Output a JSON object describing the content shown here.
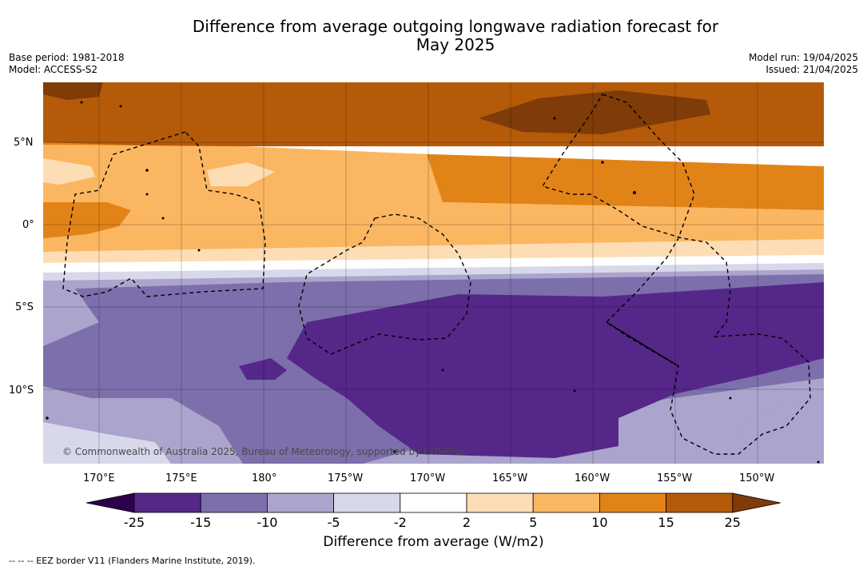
{
  "header": {
    "title_line1": "Difference from average outgoing longwave radiation forecast for",
    "title_line2": "May 2025",
    "base_period": "Base period: 1981-2018",
    "model": "Model: ACCESS-S2",
    "model_run": "Model run: 19/04/2025",
    "issued": "Issued: 21/04/2025"
  },
  "map": {
    "lat_labels": [
      "5°N",
      "0°",
      "5°S",
      "10°S"
    ],
    "lon_labels": [
      "170°E",
      "175°E",
      "180°",
      "175°W",
      "170°W",
      "165°W",
      "160°W",
      "155°W",
      "150°W"
    ],
    "copyright": "© Commonwealth of Australia 2025, Bureau of Meteorology, supported by COSPPac"
  },
  "colorbar": {
    "title": "Difference from average (W/m2)",
    "ticks": [
      "-25",
      "-15",
      "-10",
      "-5",
      "-2",
      "2",
      "5",
      "10",
      "15",
      "25"
    ],
    "colors": [
      "#552789",
      "#7c6fab",
      "#aba4cd",
      "#d8d8eb",
      "#ffffff",
      "#fdddb4",
      "#fbb662",
      "#e28318",
      "#b45a09"
    ],
    "low_extend_color": "#2d004b",
    "high_extend_color": "#7f3b08"
  },
  "legend": {
    "eez_note": "--  --  -- EEZ border V11 (Flanders Marine Institute, 2019)."
  }
}
